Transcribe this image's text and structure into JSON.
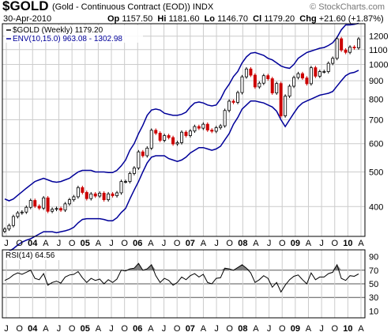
{
  "header": {
    "symbol": "$GOLD",
    "description": "(Gold - Continuous Contract (EOD))",
    "exchange": "INDX",
    "date": "30-Apr-2010",
    "op_label": "Op",
    "op": "1157.50",
    "hi_label": "Hi",
    "hi": "1181.60",
    "lo_label": "Lo",
    "lo": "1146.70",
    "cl_label": "Cl",
    "cl": "1179.20",
    "chg_label": "Chg",
    "chg": "+21.60 (+1.87%)",
    "watermark": "© StockCharts.com"
  },
  "colors": {
    "up": "#000000",
    "down": "#cc0000",
    "envelope": "#000099",
    "rsi": "#000000",
    "grid": "#cccccc",
    "rsi_fill": "#808080"
  },
  "chart_data": [
    {
      "type": "candlestick",
      "scale": "log",
      "ylim": [
        330,
        1300
      ],
      "y_ticks": [
        400,
        500,
        600,
        700,
        800,
        900,
        1000,
        1100,
        1200
      ],
      "x_ticks": [
        "J",
        "O",
        "04",
        "A",
        "J",
        "O",
        "05",
        "A",
        "J",
        "O",
        "06",
        "A",
        "J",
        "O",
        "07",
        "A",
        "J",
        "O",
        "08",
        "A",
        "J",
        "O",
        "09",
        "A",
        "J",
        "O",
        "10",
        "A"
      ],
      "legend": [
        {
          "label": "$GOLD (Weekly) 1179.20",
          "marker": "gold-legend-marker"
        },
        {
          "label": "ENV(10,15.0) 963.08 - 1302.98",
          "marker": "envelope-legend-marker"
        }
      ],
      "x": [
        "2003-06",
        "2003-07",
        "2003-08",
        "2003-09",
        "2003-10",
        "2003-11",
        "2003-12",
        "2004-01",
        "2004-02",
        "2004-03",
        "2004-04",
        "2004-05",
        "2004-06",
        "2004-07",
        "2004-08",
        "2004-09",
        "2004-10",
        "2004-11",
        "2004-12",
        "2005-01",
        "2005-02",
        "2005-03",
        "2005-04",
        "2005-05",
        "2005-06",
        "2005-07",
        "2005-08",
        "2005-09",
        "2005-10",
        "2005-11",
        "2005-12",
        "2006-01",
        "2006-02",
        "2006-03",
        "2006-04",
        "2006-05",
        "2006-06",
        "2006-07",
        "2006-08",
        "2006-09",
        "2006-10",
        "2006-11",
        "2006-12",
        "2007-01",
        "2007-02",
        "2007-03",
        "2007-04",
        "2007-05",
        "2007-06",
        "2007-07",
        "2007-08",
        "2007-09",
        "2007-10",
        "2007-11",
        "2007-12",
        "2008-01",
        "2008-02",
        "2008-03",
        "2008-04",
        "2008-05",
        "2008-06",
        "2008-07",
        "2008-08",
        "2008-09",
        "2008-10",
        "2008-11",
        "2008-12",
        "2009-01",
        "2009-02",
        "2009-03",
        "2009-04",
        "2009-05",
        "2009-06",
        "2009-07",
        "2009-08",
        "2009-09",
        "2009-10",
        "2009-11",
        "2009-12",
        "2010-01",
        "2010-02",
        "2010-03",
        "2010-04"
      ],
      "close": [
        346,
        354,
        375,
        384,
        386,
        398,
        416,
        401,
        396,
        423,
        388,
        393,
        395,
        391,
        407,
        418,
        426,
        452,
        438,
        421,
        434,
        428,
        436,
        418,
        434,
        429,
        437,
        470,
        470,
        495,
        513,
        569,
        555,
        583,
        654,
        642,
        613,
        632,
        624,
        599,
        604,
        646,
        632,
        651,
        670,
        663,
        680,
        655,
        650,
        665,
        673,
        743,
        789,
        783,
        834,
        923,
        971,
        933,
        865,
        886,
        930,
        912,
        832,
        884,
        718,
        815,
        869,
        919,
        942,
        916,
        883,
        979,
        927,
        955,
        955,
        1007,
        1040,
        1180,
        1097,
        1081,
        1118,
        1113,
        1179
      ],
      "envelope_upper": [
        420,
        415,
        420,
        430,
        440,
        450,
        460,
        470,
        475,
        480,
        475,
        470,
        468,
        470,
        475,
        480,
        490,
        500,
        505,
        505,
        505,
        500,
        500,
        500,
        498,
        498,
        505,
        520,
        540,
        575,
        600,
        640,
        675,
        720,
        745,
        750,
        745,
        730,
        725,
        720,
        720,
        725,
        735,
        760,
        780,
        785,
        780,
        770,
        765,
        770,
        800,
        845,
        880,
        925,
        955,
        1010,
        1050,
        1075,
        1080,
        1070,
        1060,
        1040,
        1030,
        1010,
        990,
        980,
        975,
        1000,
        1040,
        1060,
        1080,
        1090,
        1100,
        1110,
        1115,
        1130,
        1150,
        1190,
        1250,
        1290,
        1290,
        1295,
        1303
      ],
      "envelope_lower": [
        300,
        300,
        305,
        312,
        318,
        322,
        325,
        330,
        335,
        340,
        340,
        340,
        338,
        340,
        342,
        345,
        350,
        360,
        368,
        370,
        370,
        370,
        370,
        368,
        365,
        365,
        372,
        385,
        395,
        420,
        445,
        470,
        500,
        530,
        550,
        555,
        555,
        555,
        545,
        540,
        535,
        540,
        550,
        565,
        575,
        585,
        585,
        580,
        575,
        580,
        590,
        615,
        640,
        680,
        710,
        750,
        770,
        790,
        790,
        785,
        780,
        770,
        760,
        740,
        700,
        670,
        700,
        730,
        760,
        780,
        790,
        800,
        810,
        820,
        825,
        830,
        840,
        870,
        900,
        930,
        945,
        950,
        963
      ]
    },
    {
      "type": "line",
      "indicator": "RSI(14)",
      "title": "RSI(14) 64.56",
      "ylim": [
        0,
        100
      ],
      "y_ticks": [
        10,
        30,
        50,
        70,
        90
      ],
      "reference_lines": [
        30,
        50,
        70
      ],
      "x_ticks": [
        "J",
        "O",
        "04",
        "A",
        "J",
        "O",
        "05",
        "A",
        "J",
        "O",
        "06",
        "A",
        "J",
        "O",
        "07",
        "A",
        "J",
        "O",
        "08",
        "A",
        "J",
        "O",
        "09",
        "A",
        "J",
        "O",
        "10",
        "A"
      ],
      "values": [
        55,
        58,
        63,
        66,
        64,
        67,
        70,
        58,
        56,
        65,
        48,
        52,
        54,
        51,
        60,
        63,
        64,
        68,
        59,
        52,
        58,
        55,
        57,
        50,
        56,
        52,
        57,
        70,
        69,
        72,
        73,
        80,
        70,
        72,
        78,
        62,
        52,
        58,
        55,
        48,
        52,
        60,
        56,
        62,
        65,
        60,
        64,
        52,
        50,
        58,
        59,
        73,
        72,
        70,
        74,
        78,
        73,
        66,
        52,
        56,
        62,
        58,
        45,
        52,
        38,
        48,
        56,
        61,
        63,
        56,
        50,
        66,
        56,
        60,
        60,
        65,
        67,
        78,
        58,
        55,
        62,
        61,
        64.56
      ]
    }
  ]
}
